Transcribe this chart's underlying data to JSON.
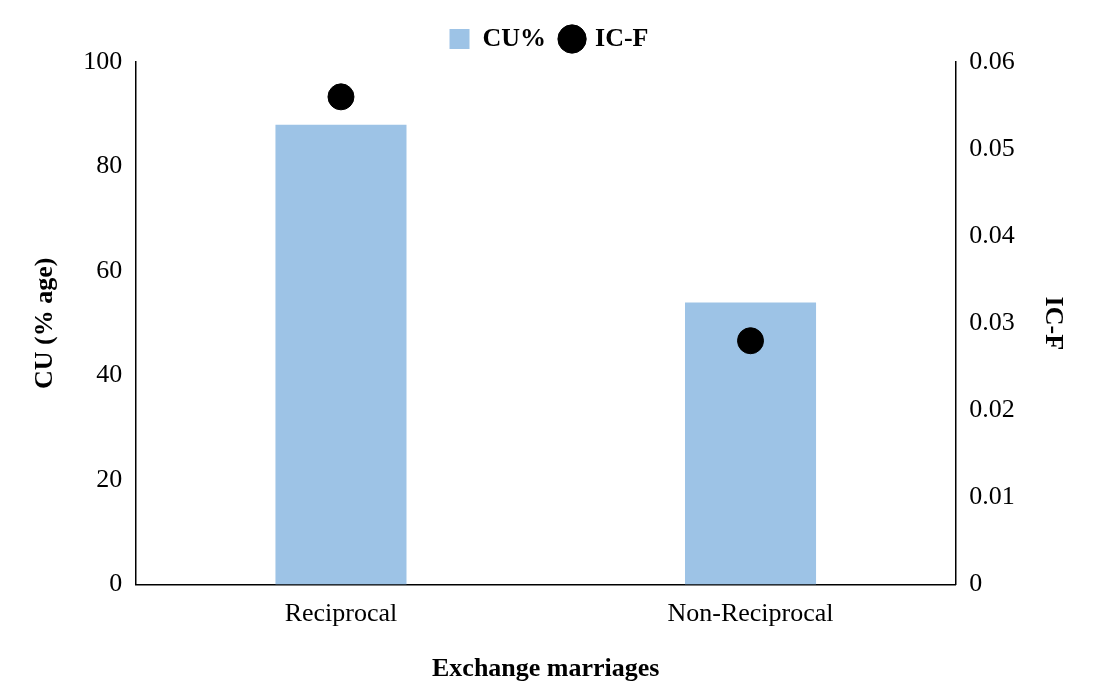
{
  "chart_data": {
    "type": "bar",
    "xlabel": "Exchange marriages",
    "ylabel": "CU (% age)",
    "y2label": "IC-F",
    "categories": [
      "Reciprocal",
      "Non-Reciprocal"
    ],
    "series": [
      {
        "name": "CU%",
        "color": "#9dc3e6",
        "values": [
          88,
          54
        ]
      },
      {
        "name": "IC-F",
        "type": "scatter",
        "axis": "y2",
        "color": "#000000",
        "marker": "circle",
        "values": [
          0.056,
          0.028
        ]
      }
    ],
    "ylim": [
      0,
      100
    ],
    "yticks": [
      0,
      20,
      40,
      60,
      80,
      100
    ],
    "y2lim": [
      0,
      0.06
    ],
    "y2ticks": [
      0,
      0.01,
      0.02,
      0.03,
      0.04,
      0.05,
      0.06
    ],
    "grid": false,
    "legend": "top"
  }
}
